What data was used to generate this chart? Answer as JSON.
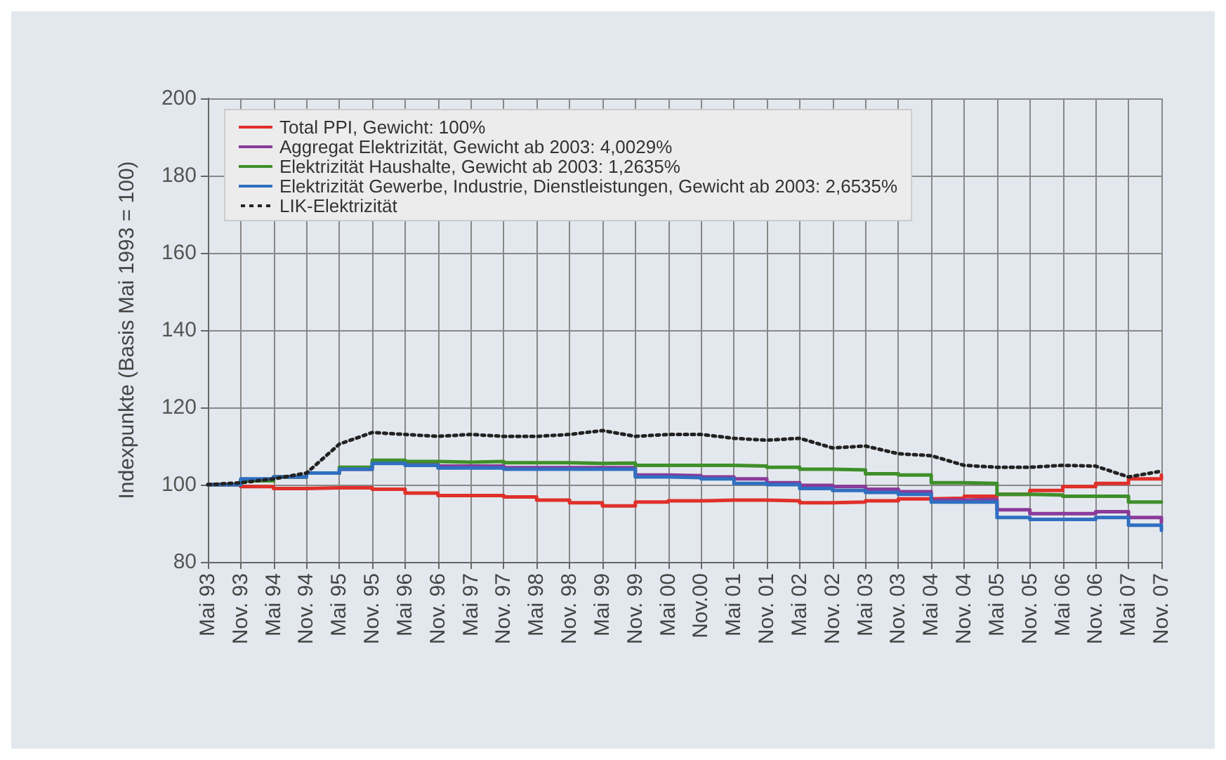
{
  "chart_data": {
    "type": "step",
    "ylabel": "Indexpunkte (Basis Mai 1993 = 100)",
    "categories": [
      "Mai 93",
      "Nov. 93",
      "Mai 94",
      "Nov. 94",
      "Mai 95",
      "Nov. 95",
      "Mai 96",
      "Nov. 96",
      "Mai 97",
      "Nov. 97",
      "Mai 98",
      "Nov. 98",
      "Mai 99",
      "Nov. 99",
      "Mai 00",
      "Nov.00",
      "Mai 01",
      "Nov. 01",
      "Mai 02",
      "Nov. 02",
      "Mai 03",
      "Nov. 03",
      "Mai 04",
      "Nov. 04",
      "Mai 05",
      "Nov. 05",
      "Mai 06",
      "Nov. 06",
      "Mai 07",
      "Nov. 07"
    ],
    "series": [
      {
        "name": "Total PPI, Gewicht: 100%",
        "color": "#e0302a",
        "values": [
          100,
          99.5,
          99,
          99.2,
          99.2,
          98.8,
          97.8,
          97.2,
          97.2,
          96.8,
          96,
          95.3,
          94.5,
          95.5,
          95.8,
          96,
          96,
          95.8,
          95.3,
          95.5,
          95.8,
          96.3,
          96.5,
          97,
          97.5,
          98.5,
          99.5,
          100.3,
          101.5,
          102.5
        ]
      },
      {
        "name": "Aggregat Elektrizität, Gewicht ab 2003: 4,0029%",
        "color": "#8a3a9a",
        "values": [
          100,
          101,
          102,
          103,
          104,
          105.6,
          105.3,
          104.8,
          104.8,
          104.4,
          104.4,
          104.4,
          104.4,
          102.5,
          102.3,
          102,
          101.5,
          100.5,
          99.8,
          99.5,
          98.8,
          98.2,
          96,
          96.2,
          93.5,
          92.5,
          92.5,
          93,
          91.5,
          90.2
        ]
      },
      {
        "name": "Elektrizität Haushalte, Gewicht ab 2003: 1,2635%",
        "color": "#3f8f2a",
        "values": [
          100,
          101,
          102,
          103,
          104.5,
          106.3,
          106,
          105.8,
          106,
          105.7,
          105.7,
          105.5,
          105.6,
          105,
          105,
          105,
          104.8,
          104.5,
          104,
          103.8,
          102.8,
          102.5,
          100.5,
          100.3,
          97.5,
          97.3,
          97,
          97,
          95.5,
          95.5
        ]
      },
      {
        "name": "Elektrizität Gewerbe, Industrie, Dienstleistungen, Gewicht ab 2003: 2,6535%",
        "color": "#2f6fc0",
        "values": [
          100,
          101.5,
          102,
          103,
          104,
          105.5,
          105,
          104.3,
          104.3,
          104,
          104,
          104,
          104,
          102,
          101.8,
          101.5,
          100.3,
          100,
          99,
          98.5,
          98,
          97.5,
          95.5,
          95.5,
          91.5,
          91,
          91,
          91.5,
          89.5,
          88.2
        ]
      },
      {
        "name": "LIK-Elektrizität",
        "color": "#222222",
        "type": "line",
        "line_style": "dotted",
        "values": [
          100,
          100.5,
          101.5,
          103,
          110.5,
          113.5,
          113,
          112.5,
          113,
          112.5,
          112.5,
          113,
          114,
          112.5,
          113,
          113,
          112,
          111.5,
          112,
          109.5,
          110,
          108,
          107.5,
          105,
          104.5,
          104.5,
          105,
          104.8,
          102,
          103.5
        ]
      }
    ],
    "ylim": [
      80,
      200
    ],
    "yticks": [
      80,
      100,
      120,
      140,
      160,
      180,
      200
    ],
    "grid": true,
    "legend": "top left",
    "marker": "none",
    "line_style": "solid"
  }
}
